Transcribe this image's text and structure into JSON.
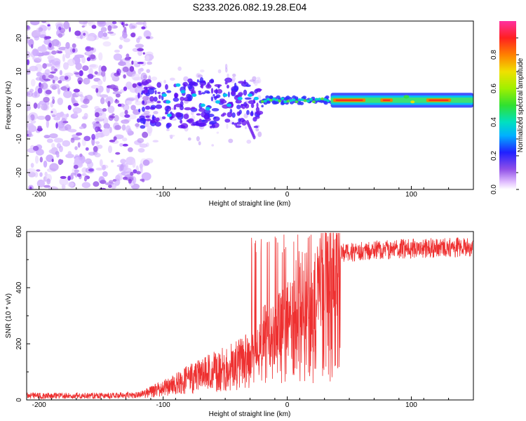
{
  "title": "S233.2026.082.19.28.E04",
  "chart_data": [
    {
      "type": "heatmap",
      "name": "spectrogram",
      "xlabel": "Height of straight line (km)",
      "ylabel": "Frequency (Hz)",
      "xlim": [
        -210,
        150
      ],
      "ylim": [
        -25,
        25
      ],
      "xticks": [
        -200,
        -100,
        0,
        100
      ],
      "yticks": [
        -20,
        -10,
        0,
        10,
        20
      ],
      "colorbar": {
        "label": "Normalized spectral amplitude",
        "range": [
          0,
          1
        ],
        "ticks": [
          0.0,
          0.2,
          0.4,
          0.6,
          0.8
        ],
        "tick_labels": [
          "0.0",
          "0.2",
          "0.4",
          "0.6",
          "0.8"
        ]
      },
      "features": [
        {
          "x_range": [
            -210,
            -110
          ],
          "freq_range": [
            -25,
            25
          ],
          "amplitude": 0.05
        },
        {
          "x_range": [
            -120,
            -20
          ],
          "freq_range": [
            -8,
            8
          ],
          "amplitude": 0.15
        },
        {
          "x_range": [
            -20,
            35
          ],
          "freq_range": [
            -1,
            4
          ],
          "amplitude": 0.35
        },
        {
          "x_range": [
            35,
            150
          ],
          "freq_range": [
            -1,
            4
          ],
          "center": 1.5,
          "amplitude": 0.95
        }
      ]
    },
    {
      "type": "line",
      "name": "snr",
      "xlabel": "Height of straight line (km)",
      "ylabel": "SNR (10 * v/v)",
      "xlim": [
        -210,
        150
      ],
      "ylim": [
        0,
        600
      ],
      "xticks": [
        -200,
        -100,
        0,
        100
      ],
      "yticks": [
        0,
        200,
        400,
        600
      ],
      "color": "#ee3030",
      "series": [
        {
          "name": "SNR",
          "x": [
            -210,
            -180,
            -150,
            -120,
            -100,
            -80,
            -60,
            -40,
            -30,
            -25,
            -20,
            -15,
            -10,
            -5,
            0,
            5,
            10,
            15,
            20,
            25,
            30,
            35,
            40,
            43,
            50,
            60,
            80,
            100,
            120,
            150
          ],
          "y": [
            15,
            15,
            15,
            18,
            45,
            80,
            110,
            140,
            160,
            200,
            250,
            270,
            260,
            300,
            330,
            380,
            400,
            330,
            370,
            460,
            500,
            510,
            515,
            520,
            525,
            530,
            535,
            540,
            542,
            545
          ]
        }
      ]
    }
  ]
}
